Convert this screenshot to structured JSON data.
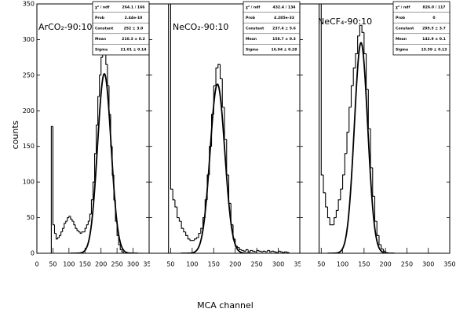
{
  "figure": {
    "xlabel": "MCA channel",
    "ylabel": "counts"
  },
  "chart_data": [
    {
      "type": "histogram",
      "label": "ArCO₂-90:10",
      "color": "#000000",
      "bins": [
        40,
        45,
        50,
        55,
        60,
        65,
        70,
        75,
        80,
        85,
        90,
        95,
        100,
        105,
        110,
        115,
        120,
        125,
        130,
        135,
        140,
        145,
        150,
        155,
        160,
        165,
        170,
        175,
        180,
        185,
        190,
        195,
        200,
        205,
        210,
        215,
        220,
        225,
        230,
        235,
        240,
        245,
        250,
        255,
        260,
        265,
        270,
        275,
        280,
        285,
        290,
        295,
        300,
        305,
        310,
        315,
        320,
        325,
        330
      ],
      "counts": [
        0,
        178,
        40,
        28,
        20,
        22,
        25,
        30,
        35,
        42,
        45,
        50,
        52,
        48,
        45,
        40,
        35,
        32,
        30,
        28,
        30,
        30,
        35,
        40,
        45,
        55,
        75,
        100,
        140,
        180,
        220,
        250,
        275,
        290,
        280,
        265,
        235,
        195,
        150,
        110,
        75,
        45,
        25,
        12,
        5,
        2,
        0,
        0,
        0,
        0,
        0,
        0,
        0,
        0,
        0,
        0,
        0,
        0
      ],
      "xlim": [
        0,
        350
      ],
      "ylim": [
        0,
        350
      ],
      "xticks": [
        0,
        50,
        100,
        150,
        200,
        250,
        300,
        350
      ],
      "yticks": [
        0,
        50,
        100,
        150,
        200,
        250,
        300,
        350
      ],
      "stats": [
        {
          "name": "χ² / ndf",
          "value_label": "264.1 / 166"
        },
        {
          "name": "Prob",
          "value": 2.44e-10
        },
        {
          "name": "Constant",
          "value": 252,
          "value_label": "252 ± 3.0"
        },
        {
          "name": "Mean",
          "value": 210.3,
          "value_label": "210.3 ± 0.2"
        },
        {
          "name": "Sigma",
          "value": 21.01,
          "value_label": "21.01 ± 0.14"
        }
      ]
    },
    {
      "type": "histogram",
      "label": "NeCO₂-90:10",
      "color": "#000000",
      "bins": [
        40,
        45,
        50,
        55,
        60,
        65,
        70,
        75,
        80,
        85,
        90,
        95,
        100,
        105,
        110,
        115,
        120,
        125,
        130,
        135,
        140,
        145,
        150,
        155,
        160,
        165,
        170,
        175,
        180,
        185,
        190,
        195,
        200,
        205,
        210,
        215,
        220,
        225,
        230,
        235,
        240,
        245,
        250,
        255,
        260,
        265,
        270,
        275,
        280,
        285,
        290,
        295,
        300,
        305,
        310,
        315,
        320,
        325,
        330
      ],
      "counts": [
        0,
        350,
        90,
        75,
        65,
        50,
        45,
        35,
        30,
        25,
        20,
        18,
        18,
        20,
        22,
        28,
        35,
        50,
        75,
        110,
        150,
        195,
        235,
        260,
        265,
        245,
        205,
        160,
        110,
        70,
        40,
        20,
        10,
        8,
        5,
        4,
        3,
        5,
        2,
        4,
        3,
        2,
        4,
        3,
        2,
        3,
        2,
        4,
        2,
        3,
        2,
        1,
        3,
        2,
        1,
        2,
        1,
        0
      ],
      "xlim": [
        0,
        350
      ],
      "ylim": [
        0,
        350
      ],
      "xticks": [
        50,
        100,
        150,
        200,
        250,
        300,
        350
      ],
      "yticks": [
        0,
        50,
        100,
        150,
        200,
        250,
        300,
        350
      ],
      "stats": [
        {
          "name": "χ² / ndf",
          "value_label": "432.4 / 134"
        },
        {
          "name": "Prob",
          "value": 4.285e-33
        },
        {
          "name": "Constant",
          "value": 237.4,
          "value_label": "237.4 ± 5.6"
        },
        {
          "name": "Mean",
          "value": 158.7,
          "value_label": "158.7 ± 0.3"
        },
        {
          "name": "Sigma",
          "value": 16.94,
          "value_label": "16.94 ± 0.28"
        }
      ]
    },
    {
      "type": "histogram",
      "label": "NeCF₄-90:10",
      "color": "#000000",
      "bins": [
        40,
        45,
        50,
        55,
        60,
        65,
        70,
        75,
        80,
        85,
        90,
        95,
        100,
        105,
        110,
        115,
        120,
        125,
        130,
        135,
        140,
        145,
        150,
        155,
        160,
        165,
        170,
        175,
        180,
        185,
        190,
        195,
        200,
        205,
        210,
        215,
        220,
        225,
        230,
        235,
        240,
        245,
        250,
        255,
        260,
        265,
        270,
        275,
        280,
        285,
        290,
        295,
        300,
        305,
        310,
        315,
        320,
        325,
        330
      ],
      "counts": [
        0,
        350,
        110,
        85,
        65,
        50,
        40,
        40,
        50,
        60,
        75,
        90,
        110,
        140,
        170,
        205,
        235,
        260,
        280,
        305,
        320,
        310,
        280,
        230,
        175,
        120,
        80,
        45,
        25,
        12,
        6,
        3,
        1,
        0,
        0,
        0,
        0,
        0,
        0,
        0,
        0,
        0,
        0,
        0,
        0,
        0,
        0,
        0,
        0,
        0,
        0,
        0,
        0,
        0,
        0,
        0,
        0,
        0
      ],
      "xlim": [
        0,
        350
      ],
      "ylim": [
        0,
        350
      ],
      "xticks": [
        50,
        100,
        150,
        200,
        250,
        300,
        350
      ],
      "yticks": [
        0,
        50,
        100,
        150,
        200,
        250,
        300,
        350
      ],
      "stats": [
        {
          "name": "χ² / ndf",
          "value_label": "826.0 / 117"
        },
        {
          "name": "Prob",
          "value": 0
        },
        {
          "name": "Constant",
          "value": 295.5,
          "value_label": "295.5 ± 3.7"
        },
        {
          "name": "Mean",
          "value": 142.9,
          "value_label": "142.9 ± 0.1"
        },
        {
          "name": "Sigma",
          "value": 15.59,
          "value_label": "15.59 ± 0.13"
        }
      ]
    }
  ]
}
